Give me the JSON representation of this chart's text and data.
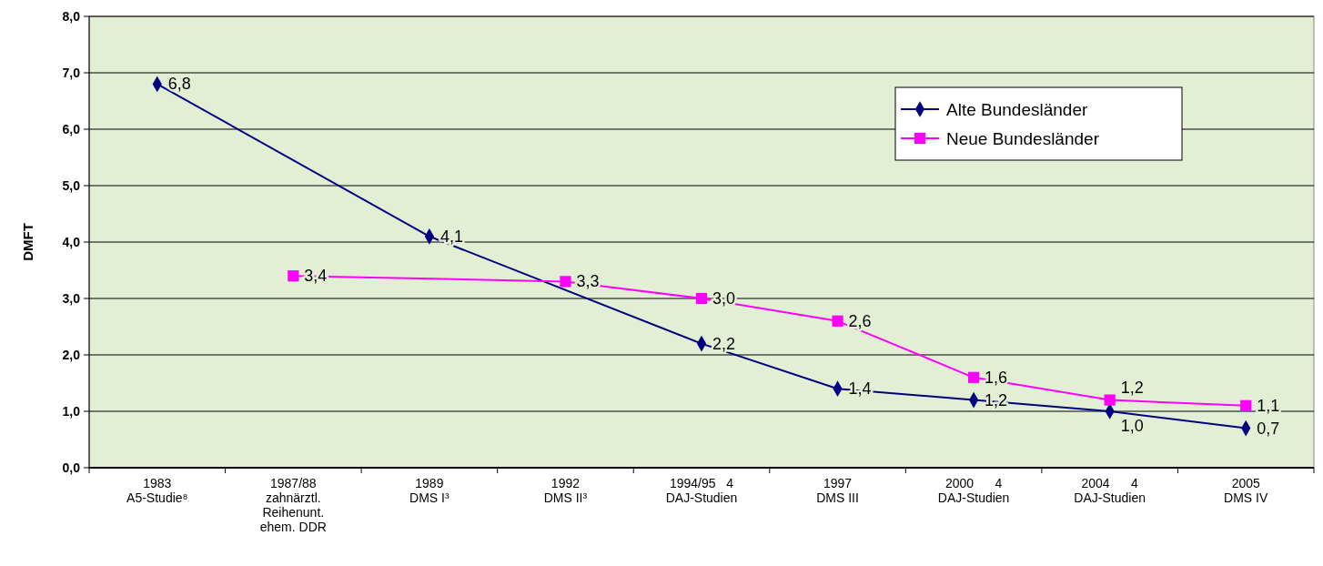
{
  "chart_data": {
    "type": "line",
    "ylabel": "DMFT",
    "categories": [
      "1983\nA5-Studie⁸",
      "1987/88\nzahnärztl.\nReihenunt.\nehem. DDR",
      "1989\nDMS I³",
      "1992\nDMS II³",
      "1994/95   4\nDAJ-Studien",
      "1997\nDMS III",
      "2000      4\nDAJ-Studien",
      "2004      4\nDAJ-Studien",
      "2005\nDMS IV"
    ],
    "series": [
      {
        "name": "Alte Bundesländer",
        "color": "#000080",
        "marker": "diamond",
        "values": [
          6.8,
          null,
          4.1,
          null,
          2.2,
          1.4,
          1.2,
          1.0,
          0.7
        ],
        "value_labels": [
          "6,8",
          null,
          "4,1",
          null,
          "2,2",
          "1,4",
          "1,2",
          "1,0",
          "0,7"
        ]
      },
      {
        "name": "Neue Bundesländer",
        "color": "#ff00ff",
        "marker": "square",
        "values": [
          null,
          3.4,
          null,
          3.3,
          3.0,
          2.6,
          1.6,
          1.2,
          1.1
        ],
        "value_labels": [
          null,
          "3,4",
          null,
          "3,3",
          "3,0",
          "2,6",
          "1,6",
          "1,2",
          "1,1"
        ]
      }
    ],
    "ylim": [
      0,
      8
    ],
    "yticks": [
      {
        "value": 0,
        "label": "0,0"
      },
      {
        "value": 1,
        "label": "1,0"
      },
      {
        "value": 2,
        "label": "2,0"
      },
      {
        "value": 3,
        "label": "3,0"
      },
      {
        "value": 4,
        "label": "4,0"
      },
      {
        "value": 5,
        "label": "5,0"
      },
      {
        "value": 6,
        "label": "6,0"
      },
      {
        "value": 7,
        "label": "7,0"
      },
      {
        "value": 8,
        "label": "8,0"
      }
    ],
    "grid": "y",
    "legend": "top right"
  }
}
